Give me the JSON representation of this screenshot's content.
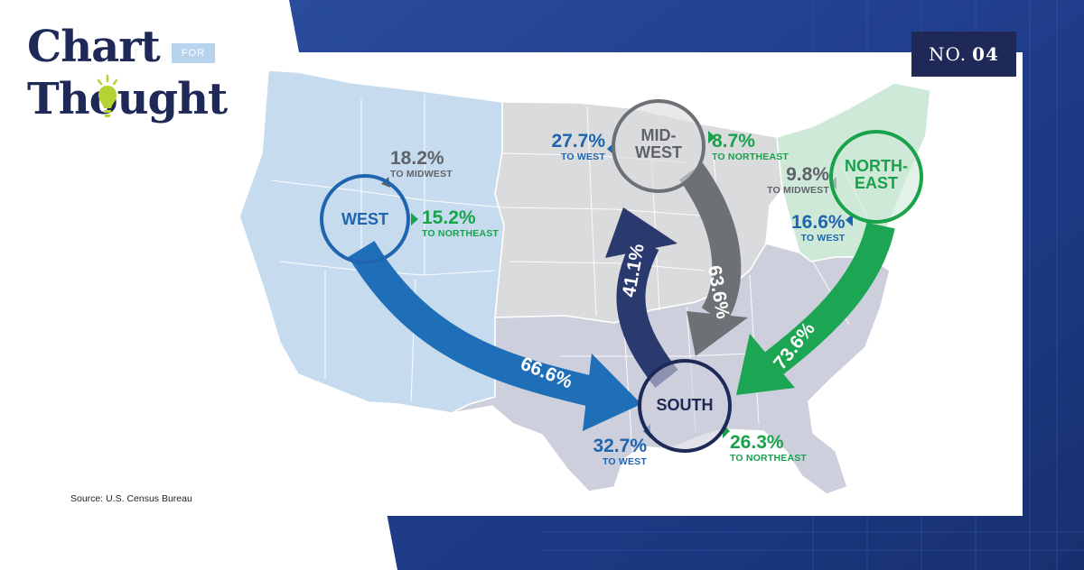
{
  "brand": {
    "line1": "Chart",
    "badge": "FOR",
    "line2": "Thought"
  },
  "issue": {
    "prefix": "NO.",
    "number": "04"
  },
  "regions": {
    "west": "WEST",
    "midwest": "MID-\nWEST",
    "northeast": "NORTH-\nEAST",
    "south": "SOUTH"
  },
  "flows": {
    "west_to_midwest": {
      "value": "18.2%",
      "label": "TO MIDWEST"
    },
    "west_to_northeast": {
      "value": "15.2%",
      "label": "TO NORTHEAST"
    },
    "west_to_south": {
      "value": "66.6%"
    },
    "midwest_to_west": {
      "value": "27.7%",
      "label": "TO WEST"
    },
    "midwest_to_northeast": {
      "value": "8.7%",
      "label": "TO NORTHEAST"
    },
    "midwest_to_south": {
      "value": "63.6%"
    },
    "northeast_to_midwest": {
      "value": "9.8%",
      "label": "TO MIDWEST"
    },
    "northeast_to_west": {
      "value": "16.6%",
      "label": "TO WEST"
    },
    "northeast_to_south": {
      "value": "73.6%"
    },
    "south_to_midwest": {
      "value": "41.1%"
    },
    "south_to_west": {
      "value": "32.7%",
      "label": "TO WEST"
    },
    "south_to_northeast": {
      "value": "26.3%",
      "label": "TO NORTHEAST"
    }
  },
  "source": "Source: U.S. Census Bureau",
  "colors": {
    "west": "#1f64ae",
    "west_region": "#c6dcee",
    "midwest": "#6d7176",
    "midwest_region": "#dadbdc",
    "northeast": "#17a24b",
    "northeast_region": "#cfe9d8",
    "south": "#1e2957",
    "south_region": "#cdcfdc",
    "background": "#1f3f8e"
  }
}
